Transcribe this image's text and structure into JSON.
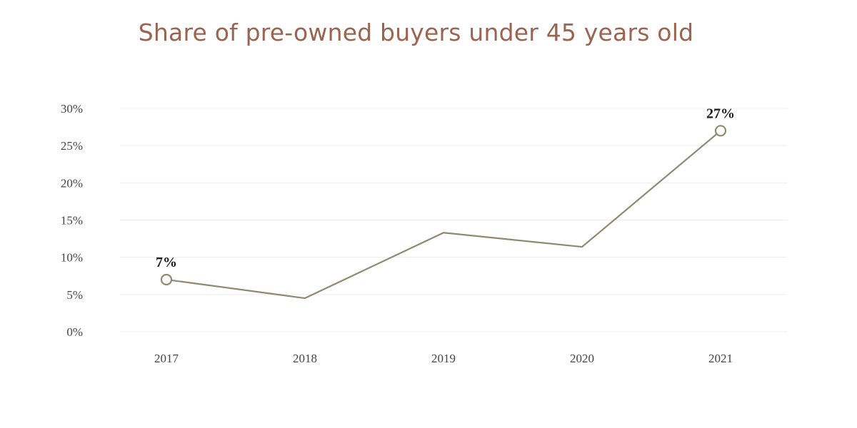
{
  "chart_data": {
    "type": "line",
    "title": "Share of pre-owned buyers under 45 years old",
    "xlabel": "",
    "ylabel": "",
    "categories": [
      "2017",
      "2018",
      "2019",
      "2020",
      "2021"
    ],
    "series": [
      {
        "values": [
          7,
          4.5,
          13.3,
          11.4,
          27
        ],
        "color": "#918872"
      }
    ],
    "data_labels": [
      {
        "index": 0,
        "text": "7%"
      },
      {
        "index": 4,
        "text": "27%"
      }
    ],
    "yticks": [
      "0%",
      "5%",
      "10%",
      "15%",
      "20%",
      "25%",
      "30%"
    ],
    "ylim": [
      0,
      30
    ],
    "grid": true,
    "legend": "none",
    "title_color": "#9a6450",
    "grid_color": "#ececec"
  }
}
